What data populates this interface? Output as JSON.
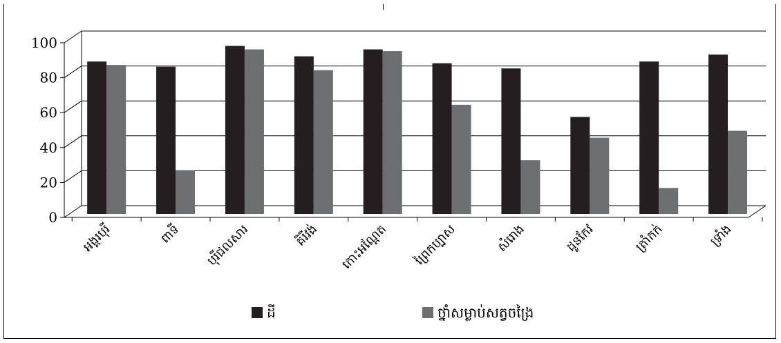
{
  "chart_data": {
    "type": "bar",
    "title": "",
    "xlabel": "",
    "ylabel": "",
    "ylim": [
      0,
      100
    ],
    "yticks": [
      0,
      20,
      40,
      60,
      80,
      100
    ],
    "grid": true,
    "legend_position": "bottom",
    "categories": [
      "អង្គរបុរី",
      "ពាទី",
      "បុរីជលសារ",
      "គិរីវង់",
      "កោះអណ្តែត",
      "ព្រៃកប្បាស",
      "សំរោង",
      "ដូនកែវ",
      "ត្រាំកក់",
      "ទ្រាំង"
    ],
    "series": [
      {
        "name": "ដី",
        "color": "#231f20",
        "values": [
          88,
          85,
          97,
          91,
          95,
          87,
          84,
          56,
          88,
          92
        ]
      },
      {
        "name": "ថ្នាំសម្លាប់សត្វចង្រៃ",
        "color": "#6d6e70",
        "values": [
          86,
          25,
          95,
          83,
          94,
          63,
          31,
          44,
          15,
          48
        ]
      }
    ]
  }
}
